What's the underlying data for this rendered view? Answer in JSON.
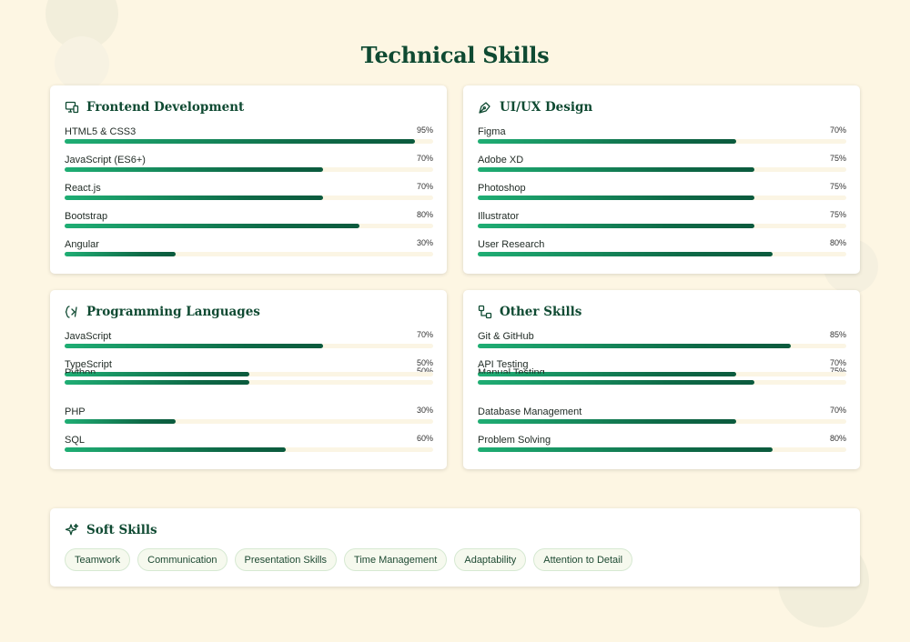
{
  "title": "Technical Skills",
  "categories": [
    {
      "title": "Frontend Development",
      "icon": "devices-icon",
      "skills": [
        {
          "name": "HTML5 & CSS3",
          "percent": "95%",
          "level": 95
        },
        {
          "name": "JavaScript (ES6+)",
          "percent": "70%",
          "level": 70
        },
        {
          "name": "React.js",
          "percent": "70%",
          "level": 70
        },
        {
          "name": "Bootstrap",
          "percent": "80%",
          "level": 80
        },
        {
          "name": "Angular",
          "percent": "30%",
          "level": 30
        }
      ]
    },
    {
      "title": "UI/UX Design",
      "icon": "pen-tool-icon",
      "skills": [
        {
          "name": "Figma",
          "percent": "70%",
          "level": 70
        },
        {
          "name": "Adobe XD",
          "percent": "75%",
          "level": 75
        },
        {
          "name": "Photoshop",
          "percent": "75%",
          "level": 75
        },
        {
          "name": "Illustrator",
          "percent": "75%",
          "level": 75
        },
        {
          "name": "User Research",
          "percent": "80%",
          "level": 80
        }
      ]
    },
    {
      "title": "Programming Languages",
      "icon": "brackets-icon",
      "skills": [
        {
          "name": "JavaScript",
          "percent": "70%",
          "level": 70
        },
        {
          "name": "TypeScript",
          "percent": "50%",
          "level": 50
        },
        {
          "name": "Python",
          "percent": "50%",
          "level": 50
        },
        {
          "name": "PHP",
          "percent": "30%",
          "level": 30
        },
        {
          "name": "SQL",
          "percent": "60%",
          "level": 60
        }
      ]
    },
    {
      "title": "Other Skills",
      "icon": "git-branch-icon",
      "skills": [
        {
          "name": "Git & GitHub",
          "percent": "85%",
          "level": 85
        },
        {
          "name": "API Testing",
          "percent": "70%",
          "level": 70
        },
        {
          "name": "Manual Testing",
          "percent": "75%",
          "level": 75
        },
        {
          "name": "Database Management",
          "percent": "70%",
          "level": 70
        },
        {
          "name": "Problem Solving",
          "percent": "80%",
          "level": 80
        }
      ]
    }
  ],
  "soft_skills": {
    "title": "Soft Skills",
    "icon": "sparkle-icon",
    "items": [
      "Teamwork",
      "Communication",
      "Presentation Skills",
      "Time Management",
      "Adaptability",
      "Attention to Detail"
    ]
  },
  "colors": {
    "heading": "#0f4a32",
    "bar_start": "#1fae74",
    "bar_end": "#0b5a3d",
    "background": "#fdf6e3",
    "chip_border": "#d6e9d2"
  }
}
